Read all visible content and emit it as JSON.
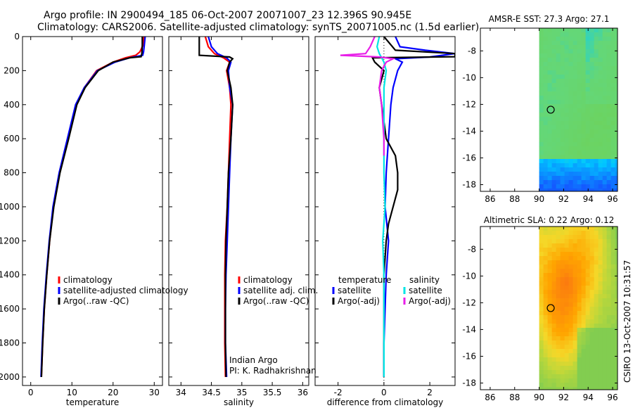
{
  "header": {
    "title_line1": "Argo profile: IN 2900494_185 06-Oct-2007 20071007_23 12.396S 90.945E",
    "title_line2": "Climatology: CARS2006. Satellite-adjusted climatology: synTS_20071005.nc (1.5d earlier)"
  },
  "footer": {
    "stamp": "CSIRO 13-Oct-2007 10:31:57"
  },
  "colors": {
    "climatology": "#ff0000",
    "satellite": "#0000ff",
    "argo": "#000000",
    "salinity_sat": "#00e5e5",
    "salinity_argo": "#e81ee8"
  },
  "chart_data": [
    {
      "id": "temperature",
      "type": "line",
      "xlabel": "temperature",
      "ylabel": "",
      "xlim": [
        -2,
        32
      ],
      "ylim": [
        2050,
        0
      ],
      "xticks": [
        0,
        10,
        20,
        30
      ],
      "xtick_labels": [
        "0",
        "10",
        "20",
        "30"
      ],
      "yticks": [
        0,
        200,
        400,
        600,
        800,
        1000,
        1200,
        1400,
        1600,
        1800,
        2000
      ],
      "ytick_labels": [
        "0",
        "200",
        "400",
        "600",
        "800",
        "1000",
        "1200",
        "1400",
        "1600",
        "1800",
        "2000"
      ],
      "legend": [
        "climatology",
        "satellite-adjusted climatology",
        "Argo(..raw -QC)"
      ],
      "series": [
        {
          "name": "climatology",
          "color": "#ff0000",
          "depth": [
            0,
            50,
            90,
            110,
            125,
            150,
            200,
            300,
            400,
            600,
            800,
            1000,
            1200,
            1400,
            1600,
            1800,
            2000
          ],
          "values": [
            27.5,
            27.3,
            26.5,
            25.5,
            23,
            20,
            16,
            13,
            11,
            9,
            7,
            5.5,
            4.6,
            3.9,
            3.3,
            2.9,
            2.6
          ]
        },
        {
          "name": "satellite-adjusted climatology",
          "color": "#0000ff",
          "depth": [
            0,
            50,
            90,
            110,
            125,
            150,
            200,
            300,
            400,
            600,
            800,
            1000,
            1200,
            1400,
            1600,
            1800,
            2000
          ],
          "values": [
            27.8,
            27.6,
            27.4,
            27.2,
            24,
            20.5,
            16.2,
            13,
            10.9,
            8.9,
            6.9,
            5.4,
            4.5,
            3.8,
            3.2,
            2.8,
            2.5
          ]
        },
        {
          "name": "Argo(..raw -QC)",
          "color": "#000000",
          "depth": [
            0,
            50,
            100,
            118,
            125,
            150,
            200,
            300,
            400,
            600,
            800,
            1000,
            1200,
            1400,
            1600,
            1800,
            2000
          ],
          "values": [
            27.1,
            27.1,
            27,
            26.8,
            24,
            20,
            16.4,
            13.2,
            11.2,
            9.2,
            7.1,
            5.6,
            4.6,
            3.9,
            3.3,
            2.9,
            2.6
          ]
        }
      ]
    },
    {
      "id": "salinity",
      "type": "line",
      "xlabel": "salinity",
      "ylabel": "",
      "xlim": [
        33.8,
        36.1
      ],
      "ylim": [
        2050,
        0
      ],
      "xticks": [
        34,
        34.5,
        35,
        35.5,
        36
      ],
      "xtick_labels": [
        "34",
        "34.5",
        "35",
        "35.5",
        "36"
      ],
      "legend": [
        "climatology",
        "satellite adj. clim.",
        "Argo(..raw -QC)"
      ],
      "annotation_line1": "Indian Argo",
      "annotation_line2": "PI: K. Radhakrishnan",
      "series": [
        {
          "name": "climatology",
          "color": "#ff0000",
          "depth": [
            0,
            60,
            100,
            125,
            150,
            200,
            300,
            400,
            600,
            800,
            1000,
            1200,
            1400,
            1600,
            1800,
            2000
          ],
          "values": [
            34.4,
            34.45,
            34.55,
            34.7,
            34.8,
            34.75,
            34.8,
            34.82,
            34.8,
            34.78,
            34.76,
            34.73,
            34.72,
            34.72,
            34.72,
            34.73
          ]
        },
        {
          "name": "satellite adj. clim.",
          "color": "#0000ff",
          "depth": [
            0,
            60,
            100,
            125,
            150,
            200,
            300,
            400,
            600,
            800,
            1000,
            1200,
            1400,
            1600,
            1800,
            2000
          ],
          "values": [
            34.45,
            34.5,
            34.6,
            34.75,
            34.82,
            34.78,
            34.8,
            34.85,
            34.82,
            34.8,
            34.78,
            34.76,
            34.74,
            34.73,
            34.73,
            34.75
          ]
        },
        {
          "name": "Argo(..raw -QC)",
          "color": "#000000",
          "depth": [
            0,
            110,
            120,
            130,
            150,
            200,
            300,
            400,
            600,
            800,
            1000,
            1200,
            1400,
            1600,
            1800,
            2000
          ],
          "values": [
            34.3,
            34.3,
            34.8,
            34.85,
            34.8,
            34.76,
            34.82,
            34.85,
            34.82,
            34.78,
            34.76,
            34.74,
            34.73,
            34.73,
            34.73,
            34.74
          ]
        }
      ]
    },
    {
      "id": "difference",
      "type": "line",
      "xlabel": "difference from climatology",
      "ylabel": "",
      "xlim": [
        -3,
        3.1
      ],
      "ylim": [
        2050,
        0
      ],
      "xticks": [
        -2,
        0,
        2
      ],
      "xtick_labels": [
        "-2",
        "0",
        "2"
      ],
      "legend_temp_title": "temperature",
      "legend_sal_title": "salinity",
      "legend": [
        "satellite",
        "Argo(-adj)",
        "satellite",
        "Argo(-adj)"
      ],
      "series": [
        {
          "name": "temperature satellite",
          "color": "#0000ff",
          "depth": [
            0,
            60,
            80,
            100,
            120,
            130,
            150,
            200,
            300,
            400,
            600,
            800,
            1000,
            1200,
            1400,
            1600,
            1800,
            2000
          ],
          "values": [
            0.5,
            0.7,
            1.8,
            3.1,
            2,
            0.5,
            0.8,
            0.6,
            0.4,
            0.3,
            0.2,
            0.1,
            0.05,
            0.2,
            0.1,
            0.05,
            0.0,
            0.0
          ]
        },
        {
          "name": "temperature Argo(-adj)",
          "color": "#000000",
          "depth": [
            0,
            80,
            100,
            118,
            125,
            150,
            200,
            300,
            400,
            600,
            700,
            800,
            900,
            1000,
            1100,
            1200,
            1400,
            1600,
            2000
          ],
          "values": [
            0.0,
            0.5,
            3.1,
            3.1,
            -0.5,
            -0.4,
            0.0,
            -0.2,
            -0.1,
            0.1,
            0.5,
            0.6,
            0.6,
            0.4,
            0.2,
            0.1,
            0.0,
            0.0,
            0.0
          ]
        },
        {
          "name": "salinity satellite",
          "color": "#00e5e5",
          "depth": [
            0,
            60,
            100,
            125,
            150,
            200,
            300,
            400,
            600,
            800,
            1000,
            1200,
            1400,
            1600,
            1800,
            2000
          ],
          "values": [
            -0.2,
            -0.3,
            -0.2,
            -0.1,
            0.0,
            0.1,
            0.0,
            0.0,
            0.0,
            0.0,
            0.05,
            -0.05,
            0.0,
            0.0,
            0.0,
            0.0
          ]
        },
        {
          "name": "salinity Argo(-adj)",
          "color": "#e81ee8",
          "depth": [
            0,
            60,
            100,
            110,
            120,
            130,
            150,
            200,
            300,
            400,
            500,
            600,
            700
          ],
          "values": [
            -0.4,
            -0.6,
            -0.8,
            -1.9,
            -0.2,
            0.4,
            0.1,
            -0.1,
            -0.2,
            -0.1,
            -0.05,
            0.0,
            0.0
          ]
        }
      ]
    },
    {
      "id": "sst_map",
      "type": "heatmap",
      "title": "AMSR-E SST: 27.3 Argo: 27.1",
      "xlim": [
        85.2,
        96.4
      ],
      "ylim": [
        -18.5,
        -6.3
      ],
      "xticks": [
        86,
        88,
        90,
        92,
        94,
        96
      ],
      "xtick_labels": [
        "86",
        "88",
        "90",
        "92",
        "94",
        "96"
      ],
      "yticks": [
        -8,
        -10,
        -12,
        -14,
        -16,
        -18
      ],
      "ytick_labels": [
        "-8",
        "-10",
        "-12",
        "-14",
        "-16",
        "-18"
      ],
      "data_lon_start": 90,
      "float_position": {
        "lon": 90.945,
        "lat": -12.396
      },
      "palette": "green-to-cyan-to-blue"
    },
    {
      "id": "sla_map",
      "type": "heatmap",
      "title": "Altimetric SLA: 0.22 Argo: 0.12",
      "xlim": [
        85.2,
        96.4
      ],
      "ylim": [
        -18.5,
        -6.3
      ],
      "xticks": [
        86,
        88,
        90,
        92,
        94,
        96
      ],
      "xtick_labels": [
        "86",
        "88",
        "90",
        "92",
        "94",
        "96"
      ],
      "yticks": [
        -8,
        -10,
        -12,
        -14,
        -16,
        -18
      ],
      "ytick_labels": [
        "-8",
        "-10",
        "-12",
        "-14",
        "-16",
        "-18"
      ],
      "data_lon_start": 90,
      "float_position": {
        "lon": 90.945,
        "lat": -12.396
      },
      "palette": "orange-to-yellow-to-green"
    }
  ]
}
